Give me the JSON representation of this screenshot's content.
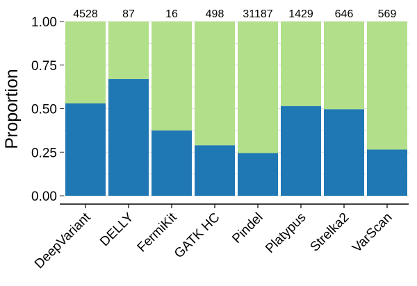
{
  "chart_data": {
    "type": "bar",
    "stacked": true,
    "title": "",
    "xlabel": "",
    "ylabel": "Proportion",
    "ylim": [
      0,
      1
    ],
    "yticks": [
      "0.00",
      "0.25",
      "0.50",
      "0.75",
      "1.00"
    ],
    "ytick_values": [
      0,
      0.25,
      0.5,
      0.75,
      1.0
    ],
    "categories": [
      "DeepVariant",
      "DELLY",
      "FermiKit",
      "GATK HC",
      "Pindel",
      "Platypus",
      "Strelka2",
      "VarScan"
    ],
    "counts": [
      "4528",
      "87",
      "16",
      "498",
      "31187",
      "1429",
      "646",
      "569"
    ],
    "series": [
      {
        "values": [
          0.53,
          0.67,
          0.375,
          0.29,
          0.245,
          0.515,
          0.497,
          0.265
        ]
      },
      {
        "values": [
          0.47,
          0.33,
          0.625,
          0.71,
          0.755,
          0.485,
          0.503,
          0.735
        ]
      }
    ],
    "colors": {
      "lower": "#1f78b4",
      "upper": "#b2df8a",
      "grid": "#dcdcdc",
      "axis": "#000000"
    },
    "grid": true,
    "legend": "none"
  }
}
